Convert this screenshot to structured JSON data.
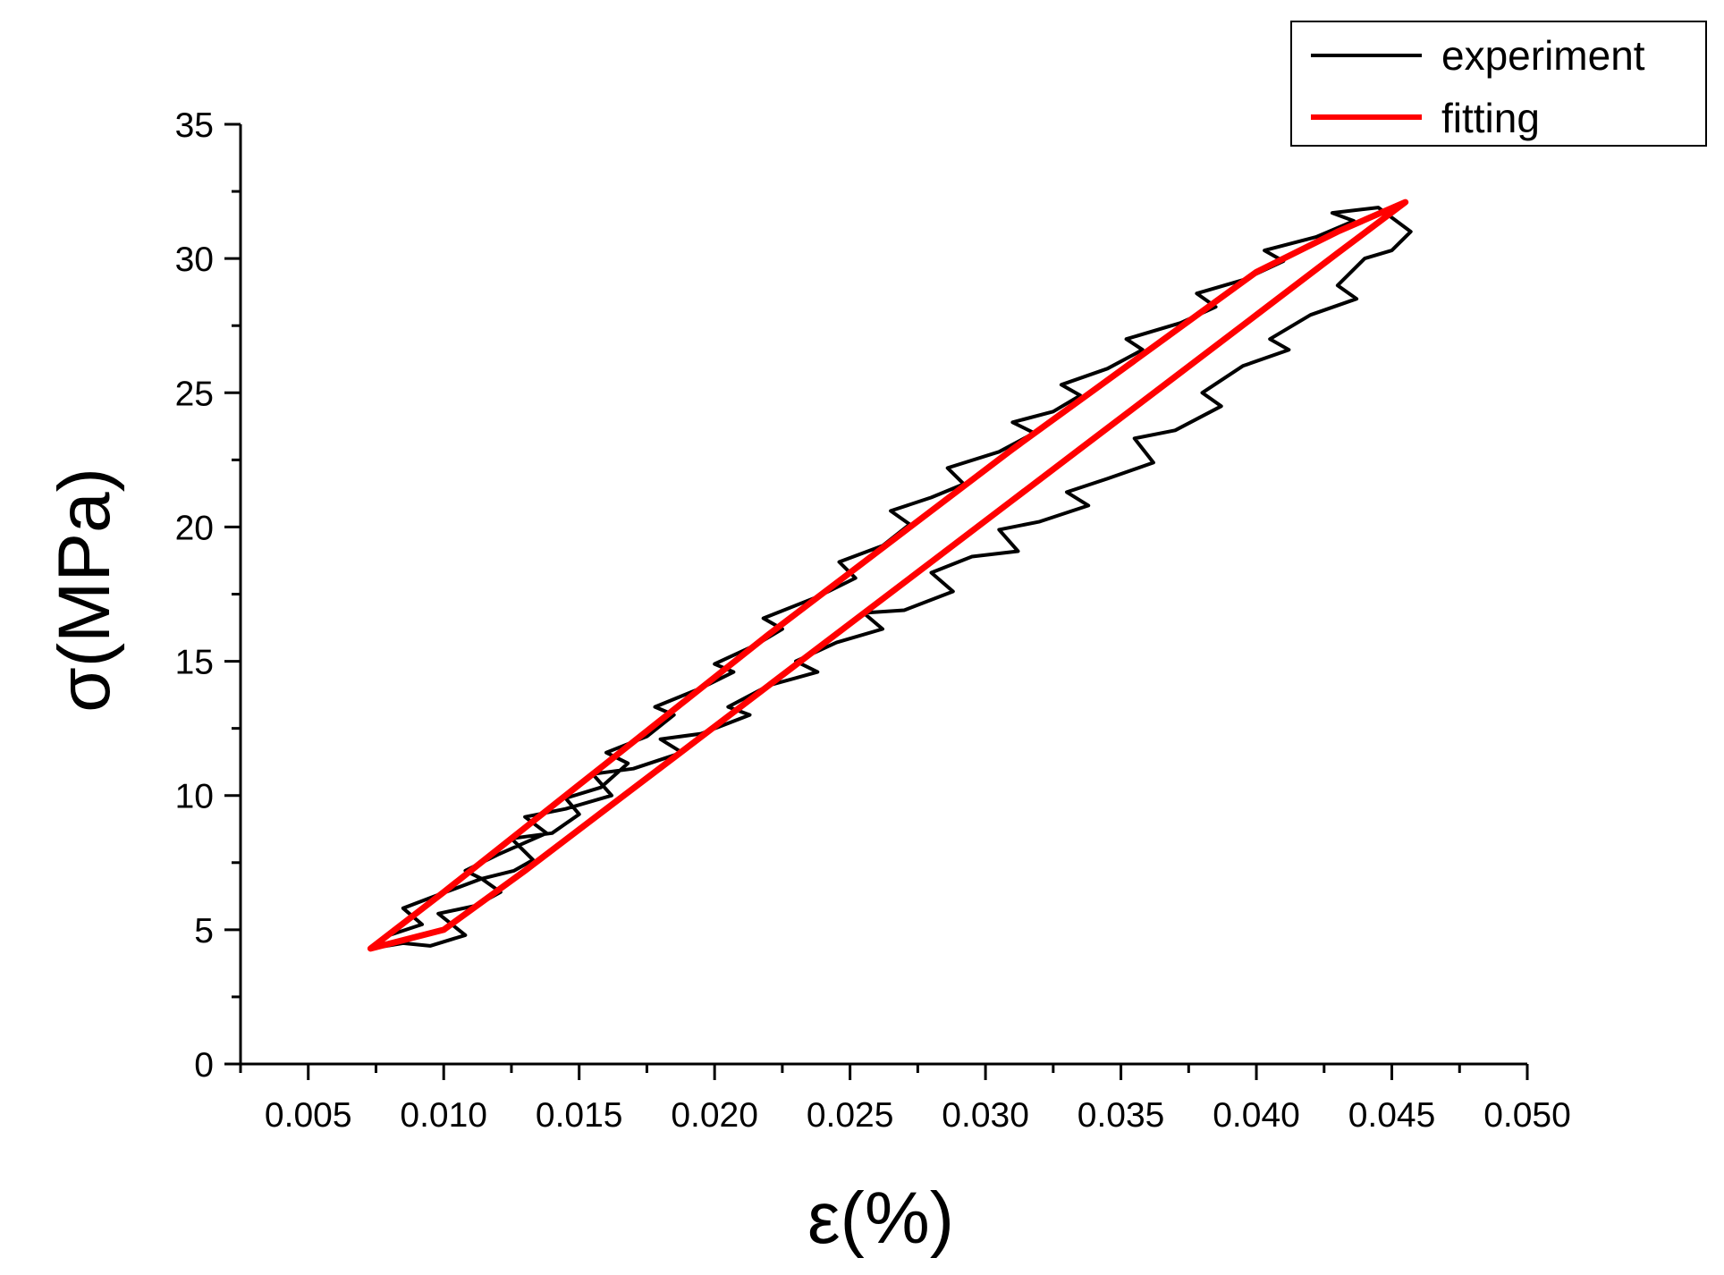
{
  "chart_data": {
    "type": "line",
    "xlabel": "ε(%)",
    "ylabel": "σ(MPa)",
    "xlim": [
      0.0025,
      0.05
    ],
    "ylim": [
      0,
      35
    ],
    "x_ticks": [
      0.005,
      0.01,
      0.015,
      0.02,
      0.025,
      0.03,
      0.035,
      0.04,
      0.045,
      0.05
    ],
    "x_tick_labels": [
      "0.005",
      "0.010",
      "0.015",
      "0.020",
      "0.025",
      "0.030",
      "0.035",
      "0.040",
      "0.045",
      "0.050"
    ],
    "y_ticks": [
      0,
      5,
      10,
      15,
      20,
      25,
      30,
      35
    ],
    "y_tick_labels": [
      "0",
      "5",
      "10",
      "15",
      "20",
      "25",
      "30",
      "35"
    ],
    "grid": false,
    "legend_position": "top-right",
    "series": [
      {
        "name": "experiment",
        "color": "#000000",
        "x": [
          0.0073,
          0.0085,
          0.0095,
          0.0108,
          0.0098,
          0.0112,
          0.0121,
          0.0114,
          0.0126,
          0.0133,
          0.0125,
          0.014,
          0.015,
          0.0145,
          0.0158,
          0.0168,
          0.016,
          0.0175,
          0.0185,
          0.0178,
          0.0195,
          0.0207,
          0.02,
          0.0215,
          0.0225,
          0.0218,
          0.0238,
          0.0252,
          0.0246,
          0.0262,
          0.0272,
          0.0265,
          0.028,
          0.0292,
          0.0286,
          0.0305,
          0.0318,
          0.031,
          0.0325,
          0.0335,
          0.0328,
          0.0345,
          0.0358,
          0.0352,
          0.0372,
          0.0385,
          0.0378,
          0.0395,
          0.041,
          0.0403,
          0.0422,
          0.0436,
          0.0428,
          0.0445,
          0.0457,
          0.045,
          0.044,
          0.043,
          0.0437,
          0.042,
          0.0405,
          0.0412,
          0.0395,
          0.038,
          0.0387,
          0.037,
          0.0355,
          0.0362,
          0.0345,
          0.033,
          0.0338,
          0.032,
          0.0305,
          0.0312,
          0.0295,
          0.028,
          0.0288,
          0.027,
          0.0255,
          0.0262,
          0.0245,
          0.023,
          0.0238,
          0.022,
          0.0205,
          0.0213,
          0.0195,
          0.018,
          0.0188,
          0.017,
          0.0155,
          0.0162,
          0.0145,
          0.013,
          0.0138,
          0.012,
          0.0108,
          0.0114,
          0.0098,
          0.0085,
          0.0092,
          0.008,
          0.0073
        ],
        "y": [
          4.3,
          4.5,
          4.4,
          4.8,
          5.6,
          5.9,
          6.4,
          6.9,
          7.2,
          7.6,
          8.4,
          8.6,
          9.3,
          9.9,
          10.3,
          11.2,
          11.6,
          12.2,
          13.0,
          13.3,
          14.0,
          14.6,
          14.9,
          15.6,
          16.2,
          16.6,
          17.4,
          18.1,
          18.7,
          19.3,
          20.1,
          20.6,
          21.1,
          21.6,
          22.2,
          22.8,
          23.5,
          23.9,
          24.3,
          24.9,
          25.3,
          25.9,
          26.6,
          27.0,
          27.6,
          28.2,
          28.7,
          29.2,
          29.9,
          30.3,
          30.8,
          31.4,
          31.7,
          31.9,
          31.0,
          30.3,
          30.0,
          29.0,
          28.5,
          27.9,
          27.0,
          26.6,
          26.0,
          25.0,
          24.5,
          23.6,
          23.3,
          22.4,
          21.8,
          21.3,
          20.8,
          20.2,
          19.9,
          19.1,
          18.9,
          18.3,
          17.6,
          16.9,
          16.8,
          16.2,
          15.7,
          15.0,
          14.6,
          14.1,
          13.3,
          13.0,
          12.3,
          12.1,
          11.6,
          11.0,
          10.8,
          10.0,
          9.5,
          9.2,
          8.6,
          7.8,
          7.2,
          6.9,
          6.3,
          5.8,
          5.2,
          4.8,
          4.3
        ]
      },
      {
        "name": "fitting",
        "color": "#ff0000",
        "x": [
          0.0073,
          0.01,
          0.013,
          0.016,
          0.019,
          0.022,
          0.025,
          0.028,
          0.031,
          0.034,
          0.037,
          0.04,
          0.043,
          0.0455,
          0.043,
          0.04,
          0.037,
          0.034,
          0.031,
          0.028,
          0.025,
          0.022,
          0.019,
          0.016,
          0.013,
          0.01,
          0.0073
        ],
        "y": [
          4.3,
          6.4,
          8.8,
          11.2,
          13.6,
          16.0,
          18.3,
          20.6,
          22.9,
          25.1,
          27.3,
          29.5,
          31.0,
          32.1,
          30.2,
          27.9,
          25.6,
          23.3,
          21.0,
          18.7,
          16.4,
          14.1,
          11.8,
          9.5,
          7.2,
          5.0,
          4.3
        ]
      }
    ]
  }
}
